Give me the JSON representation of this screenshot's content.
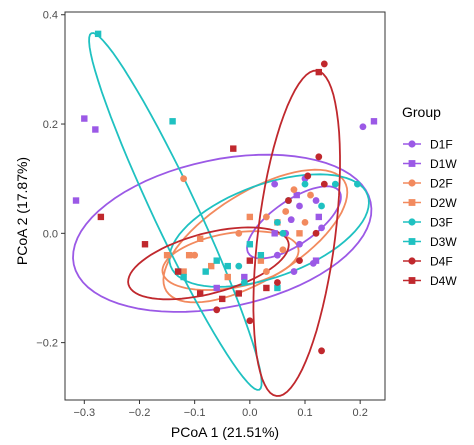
{
  "chart_data": {
    "type": "scatter",
    "xlabel": "PCoA 1 (21.51%)",
    "ylabel": "PCoA 2 (17.87%)",
    "xlim": [
      -0.335,
      0.245
    ],
    "ylim": [
      -0.305,
      0.405
    ],
    "x_ticks": [
      -0.3,
      -0.2,
      -0.1,
      0.0,
      0.1,
      0.2
    ],
    "x_tick_labels": [
      "−0.3",
      "−0.2",
      "−0.1",
      "0.0",
      "0.1",
      "0.2"
    ],
    "y_ticks": [
      -0.2,
      0.0,
      0.2,
      0.4
    ],
    "y_tick_labels": [
      "−0.2",
      "0.0",
      "0.2",
      "0.4"
    ],
    "grid": false,
    "legend": {
      "title": "Group",
      "placement": "right"
    },
    "series": [
      {
        "name": "D1F",
        "color": "#9b59e6",
        "marker": "circle",
        "points": [
          [
            0.045,
            0.09
          ],
          [
            0.075,
            0.025
          ],
          [
            0.09,
            0.05
          ],
          [
            0.12,
            0.06
          ],
          [
            0.1,
            0.1
          ],
          [
            0.065,
            0.0
          ],
          [
            0.05,
            -0.04
          ],
          [
            0.09,
            -0.02
          ],
          [
            0.115,
            -0.055
          ],
          [
            0.08,
            -0.07
          ],
          [
            0.205,
            0.195
          ],
          [
            0.13,
            0.01
          ]
        ]
      },
      {
        "name": "D1W",
        "color": "#9b59e6",
        "marker": "square",
        "points": [
          [
            -0.3,
            0.21
          ],
          [
            -0.28,
            0.19
          ],
          [
            -0.315,
            0.06
          ],
          [
            -0.06,
            -0.1
          ],
          [
            0.125,
            0.03
          ],
          [
            0.085,
            0.07
          ],
          [
            0.045,
            0.0
          ],
          [
            -0.01,
            -0.08
          ],
          [
            0.225,
            0.205
          ],
          [
            0.12,
            -0.05
          ]
        ]
      },
      {
        "name": "D2F",
        "color": "#f28a5e",
        "marker": "circle",
        "points": [
          [
            -0.12,
            0.1
          ],
          [
            0.03,
            0.03
          ],
          [
            0.065,
            0.04
          ],
          [
            0.08,
            0.08
          ],
          [
            0.1,
            0.02
          ],
          [
            -0.1,
            -0.04
          ],
          [
            0.03,
            -0.07
          ],
          [
            -0.02,
            0.0
          ],
          [
            0.11,
            0.07
          ],
          [
            0.06,
            -0.03
          ]
        ]
      },
      {
        "name": "D2W",
        "color": "#f28a5e",
        "marker": "square",
        "points": [
          [
            -0.15,
            -0.04
          ],
          [
            -0.11,
            -0.04
          ],
          [
            -0.07,
            -0.06
          ],
          [
            -0.04,
            -0.08
          ],
          [
            0.02,
            -0.05
          ],
          [
            0.05,
            0.02
          ],
          [
            -0.09,
            -0.01
          ],
          [
            0.09,
            0.0
          ],
          [
            -0.12,
            -0.07
          ],
          [
            0.0,
            0.03
          ]
        ]
      },
      {
        "name": "D3F",
        "color": "#1fc1c1",
        "marker": "circle",
        "points": [
          [
            -0.01,
            -0.09
          ],
          [
            0.05,
            0.02
          ],
          [
            0.07,
            0.06
          ],
          [
            0.1,
            0.09
          ],
          [
            0.155,
            0.09
          ],
          [
            0.195,
            0.09
          ],
          [
            0.06,
            0.0
          ],
          [
            -0.02,
            -0.06
          ],
          [
            0.13,
            0.05
          ]
        ]
      },
      {
        "name": "D3W",
        "color": "#1fc1c1",
        "marker": "square",
        "points": [
          [
            -0.275,
            0.365
          ],
          [
            -0.14,
            0.205
          ],
          [
            -0.12,
            -0.08
          ],
          [
            -0.08,
            -0.07
          ],
          [
            -0.04,
            -0.06
          ],
          [
            0.0,
            -0.02
          ],
          [
            -0.13,
            -0.07
          ],
          [
            -0.06,
            -0.05
          ],
          [
            0.05,
            -0.1
          ],
          [
            0.02,
            -0.04
          ]
        ]
      },
      {
        "name": "D4F",
        "color": "#c0282d",
        "marker": "circle",
        "points": [
          [
            0.135,
            0.31
          ],
          [
            0.125,
            0.14
          ],
          [
            0.105,
            0.105
          ],
          [
            0.135,
            0.09
          ],
          [
            0.07,
            0.06
          ],
          [
            -0.06,
            -0.14
          ],
          [
            0.0,
            -0.16
          ],
          [
            0.13,
            -0.215
          ],
          [
            0.05,
            -0.09
          ],
          [
            0.09,
            -0.05
          ],
          [
            0.12,
            0.0
          ]
        ]
      },
      {
        "name": "D4W",
        "color": "#c0282d",
        "marker": "square",
        "points": [
          [
            0.125,
            0.295
          ],
          [
            -0.03,
            0.155
          ],
          [
            -0.27,
            0.03
          ],
          [
            -0.19,
            -0.02
          ],
          [
            -0.13,
            -0.07
          ],
          [
            -0.09,
            -0.11
          ],
          [
            -0.02,
            -0.11
          ],
          [
            0.03,
            -0.1
          ],
          [
            -0.05,
            -0.12
          ],
          [
            0.0,
            -0.05
          ]
        ]
      }
    ],
    "ellipses": [
      {
        "group": "D1F",
        "color": "#9b59e6",
        "cx": -0.05,
        "cy": 0.0,
        "rx": 0.275,
        "ry": 0.135,
        "angle": 12
      },
      {
        "group": "D2F",
        "color": "#f28a5e",
        "cx": 0.01,
        "cy": -0.005,
        "rx": 0.19,
        "ry": 0.08,
        "angle": 32
      },
      {
        "group": "D2W",
        "color": "#f28a5e",
        "cx": -0.035,
        "cy": -0.05,
        "rx": 0.125,
        "ry": 0.05,
        "angle": 10
      },
      {
        "group": "D3F",
        "color": "#1fc1c1",
        "cx": 0.035,
        "cy": 0.005,
        "rx": 0.19,
        "ry": 0.085,
        "angle": 20
      },
      {
        "group": "D3W",
        "color": "#1fc1c1",
        "cx": -0.135,
        "cy": 0.04,
        "rx": 0.36,
        "ry": 0.04,
        "angle": -65
      },
      {
        "group": "D1F",
        "color": "#9b59e6",
        "cx": 0.08,
        "cy": 0.02,
        "rx": 0.1,
        "ry": 0.04,
        "angle": 35
      },
      {
        "group": "D4F",
        "color": "#c0282d",
        "cx": 0.085,
        "cy": 0.0,
        "rx": 0.3,
        "ry": 0.07,
        "angle": 83
      },
      {
        "group": "D4W",
        "color": "#c0282d",
        "cx": -0.075,
        "cy": -0.055,
        "rx": 0.15,
        "ry": 0.055,
        "angle": 15
      }
    ]
  }
}
